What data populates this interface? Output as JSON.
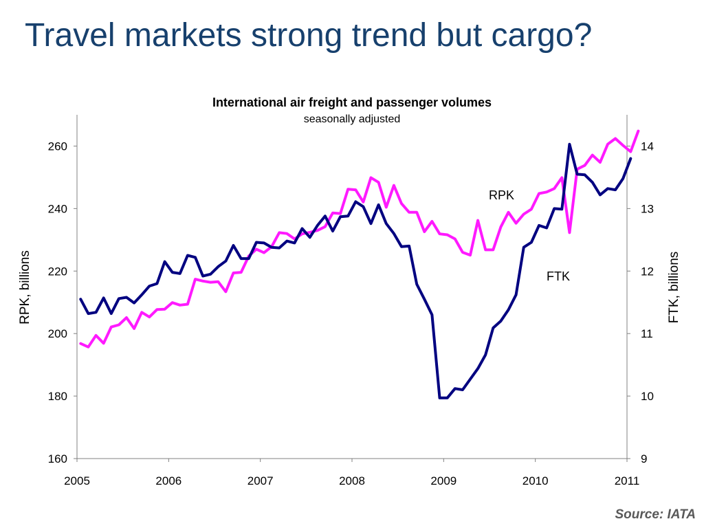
{
  "slide": {
    "title": "Travel markets strong trend but cargo?",
    "source": "Source: IATA"
  },
  "chart_data": {
    "type": "line",
    "title": "International air freight and passenger volumes",
    "subtitle": "seasonally adjusted",
    "x_ticks": [
      "2005",
      "2006",
      "2007",
      "2008",
      "2009",
      "2010",
      "2011"
    ],
    "x_range": [
      2005.0,
      2011.0
    ],
    "y_left": {
      "label": "RPK, billions",
      "range": [
        160,
        270
      ],
      "ticks": [
        160,
        180,
        200,
        220,
        240,
        260
      ]
    },
    "y_right": {
      "label": "FTK, billions",
      "range": [
        9,
        14.5
      ],
      "ticks": [
        9,
        10,
        11,
        12,
        13,
        14
      ]
    },
    "grid": false,
    "series": [
      {
        "name": "RPK",
        "axis": "left",
        "color": "#ff1aff",
        "start": 2005.04,
        "step": 0.08333,
        "values": [
          196.8,
          195.7,
          199.4,
          196.9,
          202.1,
          202.8,
          205.1,
          201.6,
          206.8,
          205.3,
          207.7,
          207.8,
          209.9,
          209.1,
          209.4,
          217.4,
          216.8,
          216.4,
          216.6,
          213.4,
          219.4,
          219.6,
          224.8,
          227.0,
          225.9,
          227.8,
          232.3,
          232.0,
          230.3,
          231.9,
          232.4,
          233.0,
          234.2,
          238.6,
          238.4,
          246.2,
          246.0,
          242.1,
          249.9,
          248.4,
          240.4,
          247.4,
          241.6,
          238.8,
          238.8,
          232.6,
          235.9,
          231.9,
          231.6,
          230.3,
          226.0,
          225.1,
          236.2,
          226.8,
          226.8,
          234.1,
          238.8,
          235.3,
          238.2,
          239.8,
          244.8,
          245.3,
          246.4,
          249.9,
          232.3,
          252.6,
          253.8,
          257.1,
          254.8,
          260.6,
          262.4,
          260.2,
          258.2,
          264.8
        ]
      },
      {
        "name": "FTK",
        "axis": "right",
        "color": "#000080",
        "start": 2005.04,
        "step": 0.08333,
        "values": [
          11.55,
          11.32,
          11.34,
          11.57,
          11.32,
          11.56,
          11.58,
          11.49,
          11.62,
          11.76,
          11.8,
          12.15,
          11.98,
          11.96,
          12.25,
          12.22,
          11.92,
          11.95,
          12.07,
          12.16,
          12.41,
          12.2,
          12.2,
          12.46,
          12.45,
          12.38,
          12.37,
          12.48,
          12.45,
          12.68,
          12.54,
          12.73,
          12.88,
          12.64,
          12.87,
          12.88,
          13.11,
          13.03,
          12.76,
          13.06,
          12.76,
          12.6,
          12.39,
          12.4,
          11.79,
          11.55,
          11.3,
          9.97,
          9.97,
          10.12,
          10.1,
          10.27,
          10.44,
          10.66,
          11.09,
          11.2,
          11.38,
          11.62,
          12.38,
          12.46,
          12.73,
          12.69,
          13.0,
          12.99,
          14.03,
          13.55,
          13.54,
          13.42,
          13.22,
          13.32,
          13.3,
          13.48,
          13.8
        ]
      }
    ],
    "annotations": [
      "RPK",
      "FTK"
    ]
  }
}
